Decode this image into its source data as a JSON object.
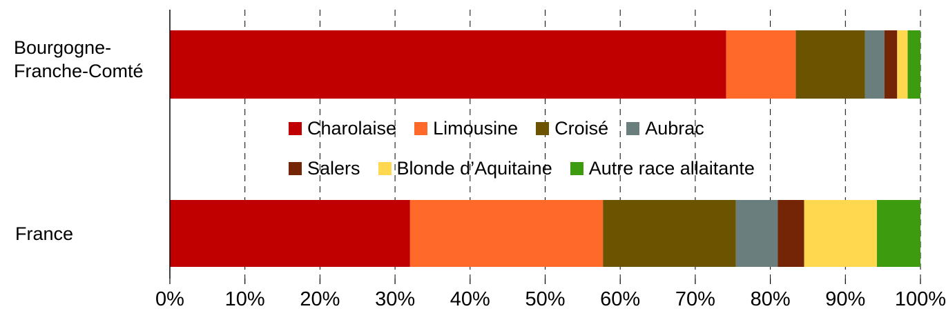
{
  "chart_data": {
    "type": "bar",
    "orientation": "horizontal",
    "stacked": true,
    "categories": [
      "Bourgogne-\nFranche-Comté",
      "France"
    ],
    "series": [
      {
        "name": "Charolaise",
        "color": "#C00000",
        "values": [
          74.1,
          32.0
        ]
      },
      {
        "name": "Limousine",
        "color": "#FF6A2A",
        "values": [
          9.3,
          25.7
        ]
      },
      {
        "name": "Croisé",
        "color": "#6B5300",
        "values": [
          9.2,
          17.7
        ]
      },
      {
        "name": "Aubrac",
        "color": "#6A7E7E",
        "values": [
          2.6,
          5.6
        ]
      },
      {
        "name": "Salers",
        "color": "#742506",
        "values": [
          1.7,
          3.5
        ]
      },
      {
        "name": "Blonde d’Aquitaine",
        "color": "#FFD850",
        "values": [
          1.4,
          9.7
        ]
      },
      {
        "name": "Autre race allaitante",
        "color": "#3D9B10",
        "values": [
          1.7,
          5.8
        ]
      }
    ],
    "xlim": [
      0,
      100
    ],
    "xticks": [
      "0%",
      "10%",
      "20%",
      "30%",
      "40%",
      "50%",
      "60%",
      "70%",
      "80%",
      "90%",
      "100%"
    ],
    "grid": "vertical dashed",
    "legend": "center",
    "title": "",
    "xlabel": "",
    "ylabel": ""
  }
}
